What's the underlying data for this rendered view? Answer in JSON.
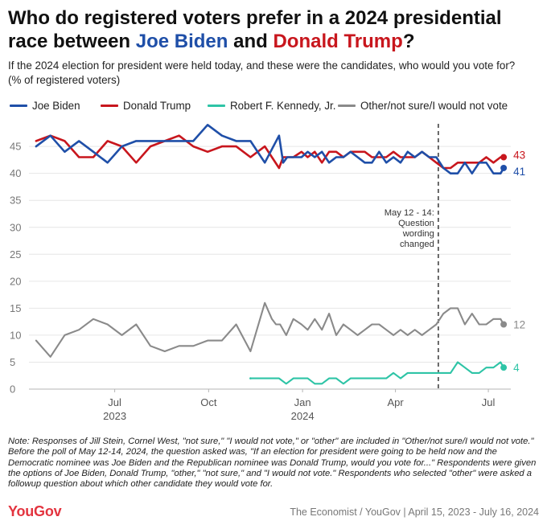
{
  "header": {
    "title_part1": "Who do registered voters prefer in a 2024 presidential race between ",
    "title_biden": "Joe Biden",
    "title_and": " and ",
    "title_trump": "Donald Trump",
    "title_end": "?",
    "question": "If the 2024 election for president were held today, and these were the candidates, who would you vote for?",
    "unit": "(% of registered voters)"
  },
  "colors": {
    "biden": "#1f4fa8",
    "trump": "#c8161d",
    "rfk": "#2ec4a6",
    "other": "#8a8a8a"
  },
  "chart_data": {
    "type": "line",
    "title": "Who do registered voters prefer in a 2024 presidential race between Joe Biden and Donald Trump?",
    "subtitle": "If the 2024 election for president were held today, and these were the candidates, who would you vote for?",
    "ylabel": "(% of registered voters)",
    "ylim": [
      0,
      50
    ],
    "yticks": [
      "0",
      "5",
      "10",
      "15",
      "20",
      "25",
      "30",
      "35",
      "40",
      "45"
    ],
    "xlim": [
      "2023-04-08",
      "2024-07-23"
    ],
    "xticks": [
      {
        "date": "2023-07-01",
        "label": "Jul",
        "year": "2023"
      },
      {
        "date": "2023-10-01",
        "label": "Oct",
        "year": ""
      },
      {
        "date": "2024-01-01",
        "label": "Jan",
        "year": "2024"
      },
      {
        "date": "2024-04-01",
        "label": "Apr",
        "year": ""
      },
      {
        "date": "2024-07-01",
        "label": "Jul",
        "year": ""
      }
    ],
    "grid": true,
    "legend_position": "top",
    "annotation": {
      "date": "2024-05-13",
      "text": [
        "May 12 - 14:",
        "Question",
        "wording",
        "changed"
      ]
    },
    "series": [
      {
        "name": "Joe Biden",
        "end_label": "41",
        "x": [
          "2023-04-15",
          "2023-04-29",
          "2023-05-13",
          "2023-05-27",
          "2023-06-10",
          "2023-06-24",
          "2023-07-08",
          "2023-07-22",
          "2023-08-05",
          "2023-08-19",
          "2023-09-02",
          "2023-09-16",
          "2023-09-30",
          "2023-10-14",
          "2023-10-28",
          "2023-11-11",
          "2023-11-25",
          "2023-12-09",
          "2023-12-13",
          "2023-12-17",
          "2023-12-23",
          "2023-12-31",
          "2024-01-06",
          "2024-01-13",
          "2024-01-20",
          "2024-01-27",
          "2024-02-03",
          "2024-02-10",
          "2024-02-17",
          "2024-02-24",
          "2024-03-02",
          "2024-03-09",
          "2024-03-16",
          "2024-03-23",
          "2024-03-30",
          "2024-04-06",
          "2024-04-13",
          "2024-04-20",
          "2024-04-27",
          "2024-05-04",
          "2024-05-11",
          "2024-05-18",
          "2024-05-25",
          "2024-06-01",
          "2024-06-08",
          "2024-06-15",
          "2024-06-22",
          "2024-06-29",
          "2024-07-06",
          "2024-07-13",
          "2024-07-16"
        ],
        "values": [
          45,
          47,
          44,
          46,
          44,
          42,
          45,
          46,
          46,
          46,
          46,
          46,
          49,
          47,
          46,
          46,
          42,
          47,
          42,
          43,
          43,
          43,
          44,
          43,
          44,
          42,
          43,
          43,
          44,
          43,
          42,
          42,
          44,
          42,
          43,
          42,
          44,
          43,
          44,
          43,
          43,
          41,
          40,
          40,
          42,
          40,
          42,
          42,
          40,
          40,
          41
        ]
      },
      {
        "name": "Donald Trump",
        "end_label": "43",
        "x": [
          "2023-04-15",
          "2023-04-29",
          "2023-05-13",
          "2023-05-27",
          "2023-06-10",
          "2023-06-24",
          "2023-07-08",
          "2023-07-22",
          "2023-08-05",
          "2023-08-19",
          "2023-09-02",
          "2023-09-16",
          "2023-09-30",
          "2023-10-14",
          "2023-10-28",
          "2023-11-11",
          "2023-11-25",
          "2023-12-09",
          "2023-12-13",
          "2023-12-17",
          "2023-12-23",
          "2023-12-31",
          "2024-01-06",
          "2024-01-13",
          "2024-01-20",
          "2024-01-27",
          "2024-02-03",
          "2024-02-10",
          "2024-02-17",
          "2024-02-24",
          "2024-03-02",
          "2024-03-09",
          "2024-03-16",
          "2024-03-23",
          "2024-03-30",
          "2024-04-06",
          "2024-04-13",
          "2024-04-20",
          "2024-04-27",
          "2024-05-04",
          "2024-05-11",
          "2024-05-18",
          "2024-05-25",
          "2024-06-01",
          "2024-06-08",
          "2024-06-15",
          "2024-06-22",
          "2024-06-29",
          "2024-07-06",
          "2024-07-13",
          "2024-07-16"
        ],
        "values": [
          46,
          47,
          46,
          43,
          43,
          46,
          45,
          42,
          45,
          46,
          47,
          45,
          44,
          45,
          45,
          43,
          45,
          41,
          43,
          43,
          43,
          44,
          43,
          44,
          42,
          44,
          44,
          43,
          44,
          44,
          44,
          43,
          43,
          43,
          44,
          43,
          43,
          43,
          44,
          43,
          42,
          41,
          41,
          42,
          42,
          42,
          42,
          43,
          42,
          43,
          43
        ]
      },
      {
        "name": "Robert F. Kennedy, Jr.",
        "end_label": "4",
        "x": [
          "2023-11-11",
          "2023-12-09",
          "2023-12-16",
          "2023-12-23",
          "2023-12-31",
          "2024-01-06",
          "2024-01-13",
          "2024-01-20",
          "2024-01-27",
          "2024-02-03",
          "2024-02-10",
          "2024-02-17",
          "2024-02-24",
          "2024-03-02",
          "2024-03-09",
          "2024-03-16",
          "2024-03-23",
          "2024-03-30",
          "2024-04-06",
          "2024-04-13",
          "2024-04-20",
          "2024-04-27",
          "2024-05-04",
          "2024-05-11",
          "2024-05-18",
          "2024-05-25",
          "2024-06-01",
          "2024-06-08",
          "2024-06-15",
          "2024-06-22",
          "2024-06-29",
          "2024-07-06",
          "2024-07-13",
          "2024-07-16"
        ],
        "values": [
          2,
          2,
          1,
          2,
          2,
          2,
          1,
          1,
          2,
          2,
          1,
          2,
          2,
          2,
          2,
          2,
          2,
          3,
          2,
          3,
          3,
          3,
          3,
          3,
          3,
          3,
          5,
          4,
          3,
          3,
          4,
          4,
          5,
          4
        ]
      },
      {
        "name": "Other/not sure/I would not vote",
        "end_label": "12",
        "x": [
          "2023-04-15",
          "2023-04-29",
          "2023-05-13",
          "2023-05-27",
          "2023-06-10",
          "2023-06-24",
          "2023-07-08",
          "2023-07-22",
          "2023-08-05",
          "2023-08-19",
          "2023-09-02",
          "2023-09-16",
          "2023-09-30",
          "2023-10-14",
          "2023-10-28",
          "2023-11-11",
          "2023-11-25",
          "2023-12-02",
          "2023-12-06",
          "2023-12-10",
          "2023-12-16",
          "2023-12-23",
          "2023-12-31",
          "2024-01-06",
          "2024-01-13",
          "2024-01-20",
          "2024-01-27",
          "2024-02-03",
          "2024-02-10",
          "2024-02-17",
          "2024-02-24",
          "2024-03-02",
          "2024-03-09",
          "2024-03-16",
          "2024-03-23",
          "2024-03-30",
          "2024-04-06",
          "2024-04-13",
          "2024-04-20",
          "2024-04-27",
          "2024-05-04",
          "2024-05-11",
          "2024-05-18",
          "2024-05-25",
          "2024-06-01",
          "2024-06-08",
          "2024-06-15",
          "2024-06-22",
          "2024-06-29",
          "2024-07-06",
          "2024-07-13",
          "2024-07-16"
        ],
        "values": [
          9,
          6,
          10,
          11,
          13,
          12,
          10,
          12,
          8,
          7,
          8,
          8,
          9,
          9,
          12,
          7,
          16,
          13,
          12,
          12,
          10,
          13,
          12,
          11,
          13,
          11,
          14,
          10,
          12,
          11,
          10,
          11,
          12,
          12,
          11,
          10,
          11,
          10,
          11,
          10,
          11,
          12,
          14,
          15,
          15,
          12,
          14,
          12,
          12,
          13,
          13,
          12
        ]
      }
    ]
  },
  "notes": {
    "text": "Note: Responses of Jill Stein, Cornel West, \"not sure,\" \"I would not vote,\" or \"other\" are included in \"Other/not sure/I would not vote.\" Before the poll of May 12-14, 2024, the question asked was, \"If an election for president were going to be held now and the Democratic nominee was Joe Biden and the Republican nominee was Donald Trump, would you vote for...\" Respondents were given the options of Joe Biden, Donald Trump, \"other,\" \"not sure,\" and \"I would not vote.\" Respondents who selected \"other\" were asked a followup question about which other candidate they would vote for."
  },
  "footer": {
    "logo": "YouGov",
    "source": "The Economist / YouGov | April 15, 2023 - July 16, 2024"
  }
}
